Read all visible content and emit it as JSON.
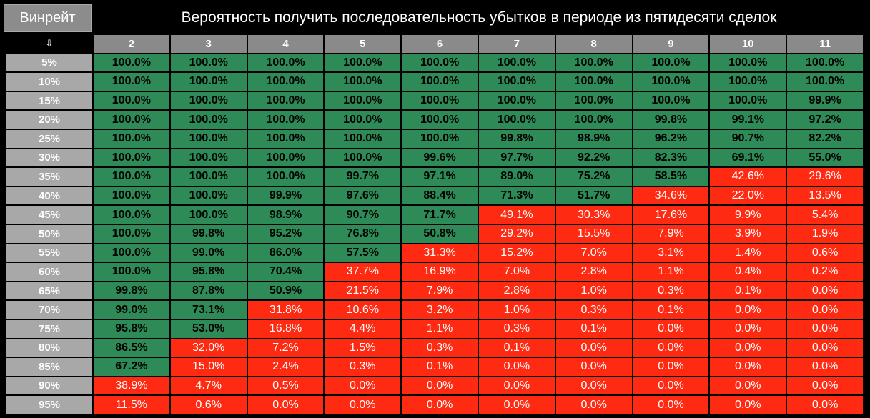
{
  "header": {
    "winrate_label": "Винрейт",
    "title": "Вероятность получить последовательность убытков в периоде из пятидесяти сделок",
    "sort_arrow": "⇩"
  },
  "colors": {
    "green": "#2e8b57",
    "red": "#ff2a12"
  },
  "chart_data": {
    "type": "heatmap",
    "title": "Вероятность получить последовательность убытков в периоде из пятидесяти сделок",
    "row_label": "Винрейт",
    "columns": [
      "2",
      "3",
      "4",
      "5",
      "6",
      "7",
      "8",
      "9",
      "10",
      "11"
    ],
    "rows": [
      "5%",
      "10%",
      "15%",
      "20%",
      "25%",
      "30%",
      "35%",
      "40%",
      "45%",
      "50%",
      "55%",
      "60%",
      "65%",
      "70%",
      "75%",
      "80%",
      "85%",
      "90%",
      "95%"
    ],
    "values": [
      [
        "100.0%",
        "100.0%",
        "100.0%",
        "100.0%",
        "100.0%",
        "100.0%",
        "100.0%",
        "100.0%",
        "100.0%",
        "100.0%"
      ],
      [
        "100.0%",
        "100.0%",
        "100.0%",
        "100.0%",
        "100.0%",
        "100.0%",
        "100.0%",
        "100.0%",
        "100.0%",
        "100.0%"
      ],
      [
        "100.0%",
        "100.0%",
        "100.0%",
        "100.0%",
        "100.0%",
        "100.0%",
        "100.0%",
        "100.0%",
        "100.0%",
        "99.9%"
      ],
      [
        "100.0%",
        "100.0%",
        "100.0%",
        "100.0%",
        "100.0%",
        "100.0%",
        "100.0%",
        "99.8%",
        "99.1%",
        "97.2%"
      ],
      [
        "100.0%",
        "100.0%",
        "100.0%",
        "100.0%",
        "100.0%",
        "99.8%",
        "98.9%",
        "96.2%",
        "90.7%",
        "82.2%"
      ],
      [
        "100.0%",
        "100.0%",
        "100.0%",
        "100.0%",
        "99.6%",
        "97.7%",
        "92.2%",
        "82.3%",
        "69.1%",
        "55.0%"
      ],
      [
        "100.0%",
        "100.0%",
        "100.0%",
        "99.7%",
        "97.1%",
        "89.0%",
        "75.2%",
        "58.5%",
        "42.6%",
        "29.6%"
      ],
      [
        "100.0%",
        "100.0%",
        "99.9%",
        "97.6%",
        "88.4%",
        "71.3%",
        "51.7%",
        "34.6%",
        "22.0%",
        "13.5%"
      ],
      [
        "100.0%",
        "100.0%",
        "98.9%",
        "90.7%",
        "71.7%",
        "49.1%",
        "30.3%",
        "17.6%",
        "9.9%",
        "5.4%"
      ],
      [
        "100.0%",
        "99.8%",
        "95.2%",
        "76.8%",
        "50.8%",
        "29.2%",
        "15.5%",
        "7.9%",
        "3.9%",
        "1.9%"
      ],
      [
        "100.0%",
        "99.0%",
        "86.0%",
        "57.5%",
        "31.3%",
        "15.2%",
        "7.0%",
        "3.1%",
        "1.4%",
        "0.6%"
      ],
      [
        "100.0%",
        "95.8%",
        "70.4%",
        "37.7%",
        "16.9%",
        "7.0%",
        "2.8%",
        "1.1%",
        "0.4%",
        "0.2%"
      ],
      [
        "99.8%",
        "87.8%",
        "50.9%",
        "21.5%",
        "7.9%",
        "2.8%",
        "1.0%",
        "0.3%",
        "0.1%",
        "0.0%"
      ],
      [
        "99.0%",
        "73.1%",
        "31.8%",
        "10.6%",
        "3.2%",
        "1.0%",
        "0.3%",
        "0.1%",
        "0.0%",
        "0.0%"
      ],
      [
        "95.8%",
        "53.0%",
        "16.8%",
        "4.4%",
        "1.1%",
        "0.3%",
        "0.1%",
        "0.0%",
        "0.0%",
        "0.0%"
      ],
      [
        "86.5%",
        "32.0%",
        "7.2%",
        "1.5%",
        "0.3%",
        "0.1%",
        "0.0%",
        "0.0%",
        "0.0%",
        "0.0%"
      ],
      [
        "67.2%",
        "15.0%",
        "2.4%",
        "0.3%",
        "0.1%",
        "0.0%",
        "0.0%",
        "0.0%",
        "0.0%",
        "0.0%"
      ],
      [
        "38.9%",
        "4.7%",
        "0.5%",
        "0.0%",
        "0.0%",
        "0.0%",
        "0.0%",
        "0.0%",
        "0.0%",
        "0.0%"
      ],
      [
        "11.5%",
        "0.6%",
        "0.0%",
        "0.0%",
        "0.0%",
        "0.0%",
        "0.0%",
        "0.0%",
        "0.0%",
        "0.0%"
      ]
    ],
    "green_threshold": 50
  }
}
